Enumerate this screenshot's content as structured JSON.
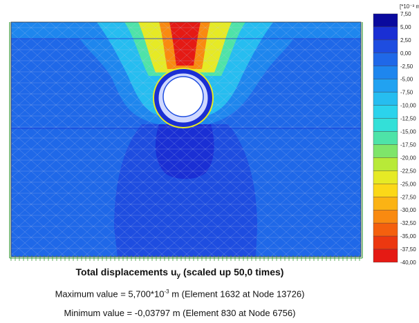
{
  "colorbar": {
    "unit": "[*10⁻³ m]",
    "bins": [
      {
        "label": "7,50",
        "color": "#0a0a9e"
      },
      {
        "label": "5,00",
        "color": "#1a2fd4"
      },
      {
        "label": "2,50",
        "color": "#1e4de0"
      },
      {
        "label": "0,00",
        "color": "#1f68e8"
      },
      {
        "label": "-2,50",
        "color": "#1e86ee"
      },
      {
        "label": "-5,00",
        "color": "#21a2f1"
      },
      {
        "label": "-7,50",
        "color": "#26bdf0"
      },
      {
        "label": "-10,00",
        "color": "#2bd3ec"
      },
      {
        "label": "-12,50",
        "color": "#33e0d8"
      },
      {
        "label": "-15,00",
        "color": "#4ee3a8"
      },
      {
        "label": "-17,50",
        "color": "#7fe56a"
      },
      {
        "label": "-20,00",
        "color": "#b8ea38"
      },
      {
        "label": "-22,50",
        "color": "#e6ea25"
      },
      {
        "label": "-25,00",
        "color": "#fbd818"
      },
      {
        "label": "-27,50",
        "color": "#fbb314"
      },
      {
        "label": "-30,00",
        "color": "#f98a10"
      },
      {
        "label": "-32,50",
        "color": "#f4600e"
      },
      {
        "label": "-35,00",
        "color": "#ec3810"
      },
      {
        "label": "-37,50",
        "color": "#e51a14",
        "last_label": "-40,00"
      }
    ]
  },
  "caption": {
    "title": "Total displacements u",
    "title_sub": "y",
    "title_rest": " (scaled up 50,0 times)",
    "max_prefix": "Maximum value = 5,700*10",
    "max_exp": "-3",
    "max_suffix": " m (Element 1632 at Node 13726)",
    "min_line": "Minimum value = -0,03797 m (Element 830 at Node 6756)"
  },
  "colors": {
    "background_field": "#1f68e8",
    "upper_band": "#1e86ee",
    "mesh": "#b9c9e8",
    "tunnel_ring": "#1a2fd4",
    "tunnel_lining": "#cfd8ff"
  }
}
